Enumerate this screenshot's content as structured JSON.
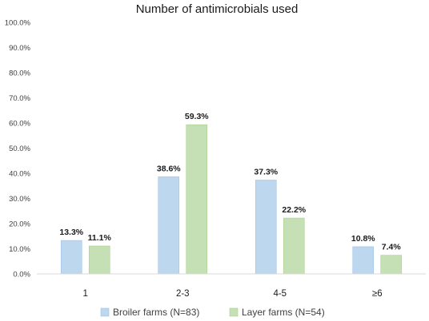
{
  "chart_data": {
    "type": "bar",
    "title": "Number of antimicrobials used",
    "categories": [
      "1",
      "2-3",
      "4-5",
      "≥6"
    ],
    "series": [
      {
        "name": "Broiler farms (N=83)",
        "values": [
          13.3,
          38.6,
          37.3,
          10.8
        ],
        "labels": [
          "13.3%",
          "38.6%",
          "37.3%",
          "10.8%"
        ],
        "color": "#bdd7ee",
        "stroke": "#9dc3e6"
      },
      {
        "name": "Layer farms (N=54)",
        "values": [
          11.1,
          59.3,
          22.2,
          7.4
        ],
        "labels": [
          "11.1%",
          "59.3%",
          "22.2%",
          "7.4%"
        ],
        "color": "#c5e0b4",
        "stroke": "#a9d18e"
      }
    ],
    "yticks": [
      "0.0%",
      "10.0%",
      "20.0%",
      "30.0%",
      "40.0%",
      "50.0%",
      "60.0%",
      "70.0%",
      "80.0%",
      "90.0%",
      "100.0%"
    ],
    "ylim": [
      0,
      100
    ],
    "xlabel": "",
    "ylabel": "",
    "grid": false,
    "legend": "bottom"
  }
}
